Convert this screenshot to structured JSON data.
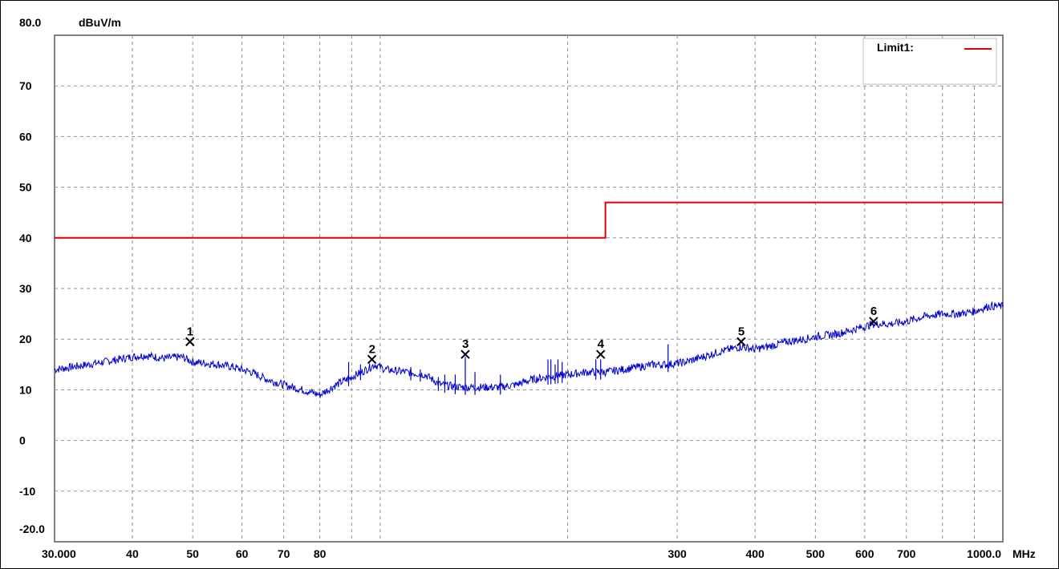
{
  "chart_data": {
    "type": "line",
    "y_unit_label": "dBuV/m",
    "x_unit_label": "MHz",
    "x_scale": "log",
    "xlim": [
      30,
      1000
    ],
    "ylim": [
      -20,
      80
    ],
    "grid": true,
    "legend_position": "top-right",
    "x_ticks": [
      {
        "value": 30,
        "label": "30.000"
      },
      {
        "value": 40,
        "label": "40"
      },
      {
        "value": 50,
        "label": "50"
      },
      {
        "value": 60,
        "label": "60"
      },
      {
        "value": 70,
        "label": "70"
      },
      {
        "value": 80,
        "label": "80"
      },
      {
        "value": 300,
        "label": "300"
      },
      {
        "value": 400,
        "label": "400"
      },
      {
        "value": 500,
        "label": "500"
      },
      {
        "value": 600,
        "label": "600"
      },
      {
        "value": 700,
        "label": "700"
      },
      {
        "value": 1000,
        "label": "1000.0"
      }
    ],
    "x_grid_values": [
      30,
      40,
      50,
      60,
      70,
      80,
      90,
      100,
      200,
      300,
      400,
      500,
      600,
      700,
      800,
      900,
      1000
    ],
    "y_ticks": [
      {
        "value": 80,
        "label": "80.0"
      },
      {
        "value": 70,
        "label": "70"
      },
      {
        "value": 60,
        "label": "60"
      },
      {
        "value": 50,
        "label": "50"
      },
      {
        "value": 40,
        "label": "40"
      },
      {
        "value": 30,
        "label": "30"
      },
      {
        "value": 20,
        "label": "20"
      },
      {
        "value": 10,
        "label": "10"
      },
      {
        "value": 0,
        "label": "0"
      },
      {
        "value": -10,
        "label": "-10"
      },
      {
        "value": -20,
        "label": "-20.0"
      }
    ],
    "series": [
      {
        "name": "Limit1:",
        "color": "#e00000",
        "points": [
          [
            30,
            40
          ],
          [
            230,
            40
          ],
          [
            230,
            47
          ],
          [
            1000,
            47
          ]
        ]
      },
      {
        "name": "",
        "color": "#0000d0",
        "points": [
          [
            30,
            14
          ],
          [
            32,
            14.5
          ],
          [
            34,
            15
          ],
          [
            36,
            15.5
          ],
          [
            38,
            16
          ],
          [
            40,
            16.5
          ],
          [
            42,
            16.8
          ],
          [
            45,
            16.2
          ],
          [
            48,
            16.5
          ],
          [
            50,
            15.5
          ],
          [
            55,
            15
          ],
          [
            58,
            14.5
          ],
          [
            62,
            13.5
          ],
          [
            66,
            12
          ],
          [
            70,
            11
          ],
          [
            75,
            10
          ],
          [
            80,
            9
          ],
          [
            85,
            11
          ],
          [
            90,
            12.5
          ],
          [
            95,
            14
          ],
          [
            98,
            15
          ],
          [
            102,
            14
          ],
          [
            110,
            13.5
          ],
          [
            118,
            13
          ],
          [
            125,
            11
          ],
          [
            135,
            10.5
          ],
          [
            145,
            10.5
          ],
          [
            155,
            10.5
          ],
          [
            165,
            11
          ],
          [
            175,
            12
          ],
          [
            185,
            12.5
          ],
          [
            200,
            13
          ],
          [
            215,
            13.5
          ],
          [
            230,
            13.5
          ],
          [
            245,
            14
          ],
          [
            260,
            14.5
          ],
          [
            275,
            15
          ],
          [
            290,
            15
          ],
          [
            310,
            15.5
          ],
          [
            330,
            16.5
          ],
          [
            350,
            17.5
          ],
          [
            380,
            18.5
          ],
          [
            400,
            18
          ],
          [
            420,
            18.5
          ],
          [
            450,
            19.5
          ],
          [
            480,
            20
          ],
          [
            500,
            20.5
          ],
          [
            540,
            21
          ],
          [
            580,
            22
          ],
          [
            620,
            23
          ],
          [
            660,
            23
          ],
          [
            700,
            23.5
          ],
          [
            750,
            24.5
          ],
          [
            800,
            25
          ],
          [
            850,
            25
          ],
          [
            900,
            25.5
          ],
          [
            950,
            26.5
          ],
          [
            1000,
            26.5
          ]
        ]
      }
    ],
    "spikes": [
      {
        "x": 89,
        "y": 15.5
      },
      {
        "x": 93,
        "y": 15
      },
      {
        "x": 112,
        "y": 14.5
      },
      {
        "x": 116,
        "y": 14
      },
      {
        "x": 124,
        "y": 12.5
      },
      {
        "x": 127,
        "y": 13
      },
      {
        "x": 132,
        "y": 13
      },
      {
        "x": 137,
        "y": 16.5
      },
      {
        "x": 142,
        "y": 13.5
      },
      {
        "x": 156,
        "y": 13
      },
      {
        "x": 186,
        "y": 16
      },
      {
        "x": 188,
        "y": 16
      },
      {
        "x": 191,
        "y": 15
      },
      {
        "x": 193,
        "y": 16
      },
      {
        "x": 196,
        "y": 15.5
      },
      {
        "x": 222,
        "y": 16
      },
      {
        "x": 226,
        "y": 16
      },
      {
        "x": 290,
        "y": 19
      }
    ],
    "markers": [
      {
        "label": "1",
        "x": 49.5,
        "y": 19.5
      },
      {
        "label": "2",
        "x": 97,
        "y": 16
      },
      {
        "label": "3",
        "x": 137,
        "y": 17
      },
      {
        "label": "4",
        "x": 226,
        "y": 17
      },
      {
        "label": "5",
        "x": 380,
        "y": 19.5
      },
      {
        "label": "6",
        "x": 620,
        "y": 23.5
      }
    ]
  },
  "legend": {
    "label": "Limit1:"
  }
}
